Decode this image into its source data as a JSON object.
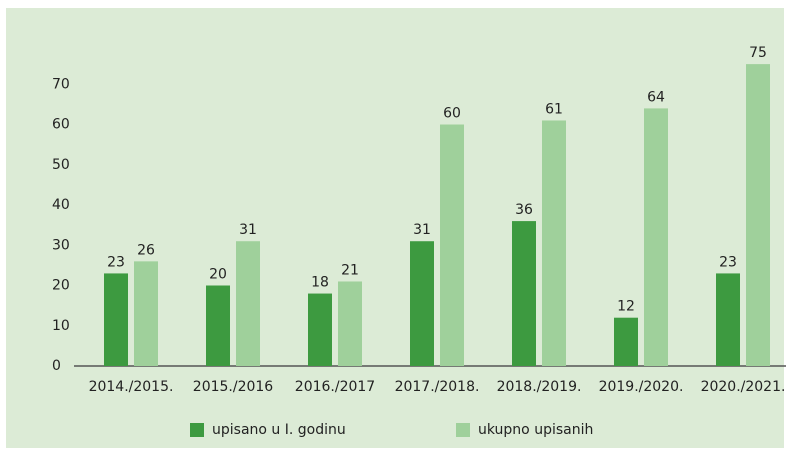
{
  "chart_data": {
    "type": "bar",
    "categories": [
      "2014./2015.",
      "2015./2016",
      "2016./2017",
      "2017./2018.",
      "2018./2019.",
      "2019./2020.",
      "2020./2021."
    ],
    "series": [
      {
        "name": "upisano u I. godinu",
        "color": "#3d9a40",
        "values": [
          23,
          20,
          18,
          31,
          36,
          12,
          23
        ]
      },
      {
        "name": "ukupno upisanih",
        "color": "#9fd09b",
        "values": [
          26,
          31,
          21,
          60,
          61,
          64,
          75
        ]
      }
    ],
    "ylim": [
      0,
      80
    ],
    "yticks": [
      0,
      10,
      20,
      30,
      40,
      50,
      60,
      70
    ],
    "grid": false
  }
}
